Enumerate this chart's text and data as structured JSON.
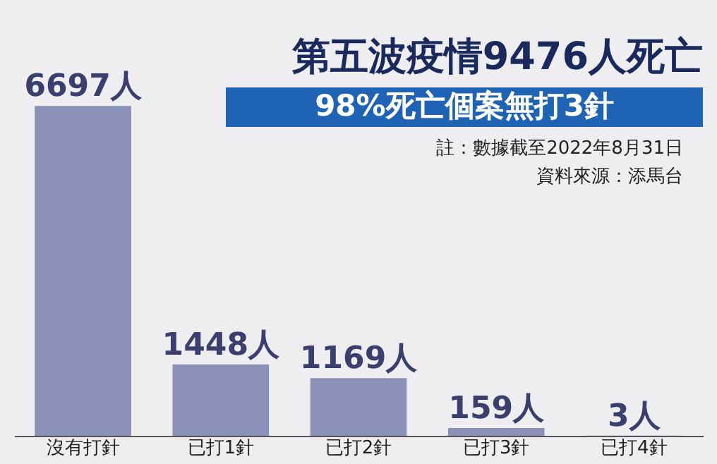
{
  "chart_data": {
    "type": "bar",
    "title": "第五波疫情9476人死亡",
    "subtitle": "98%死亡個案無打3針",
    "annotations": [
      "註：數據截至2022年8月31日",
      "資料來源：添馬台"
    ],
    "categories": [
      "沒有打針",
      "已打1針",
      "已打2針",
      "已打3針",
      "已打4針"
    ],
    "values": [
      6697,
      1448,
      1169,
      159,
      3
    ],
    "value_labels": [
      "6697人",
      "1448人",
      "1169人",
      "159人",
      "3人"
    ],
    "color": "#8b90b6",
    "grid": false,
    "tick_labels": "x"
  }
}
